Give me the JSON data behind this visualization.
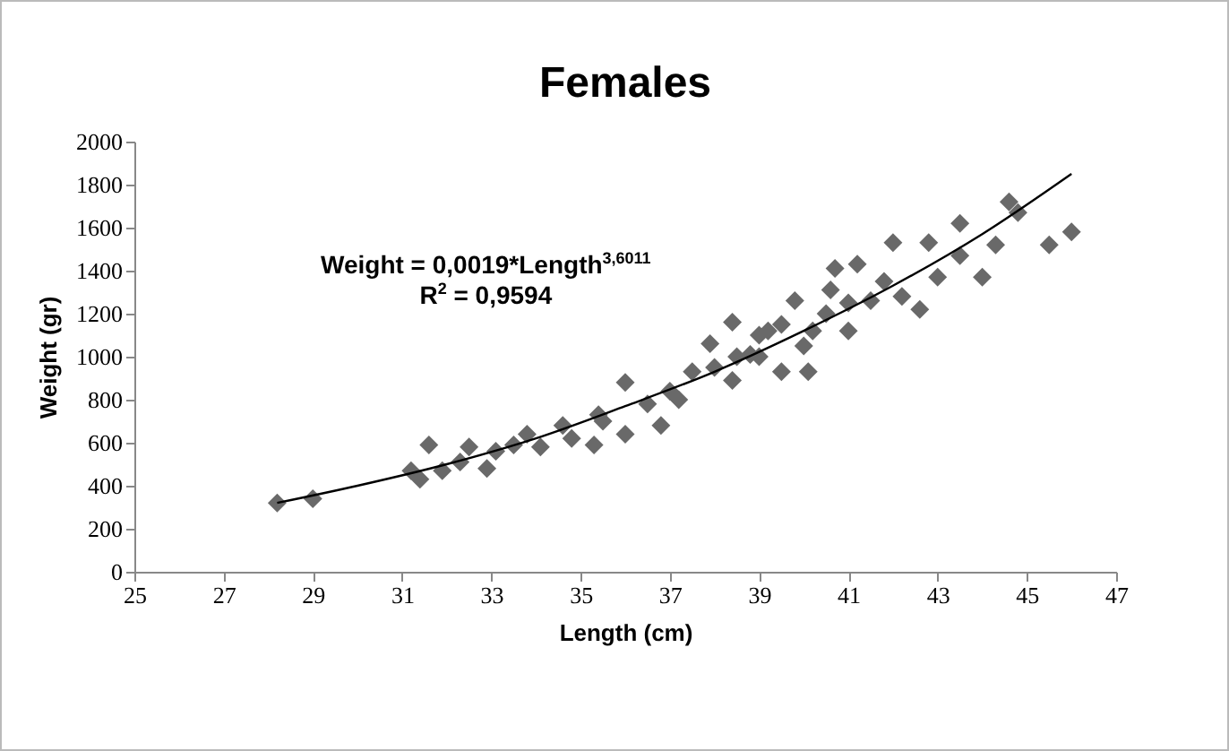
{
  "chart_data": {
    "type": "scatter",
    "title": "Females",
    "xlabel": "Length (cm)",
    "ylabel": "Weight (gr)",
    "annotations": [
      "Weight = 0,0019*Length$^{3,6011}$",
      "R$^{2}$ = 0,9594"
    ],
    "xlim": [
      25,
      47
    ],
    "xticks": [
      25,
      27,
      29,
      31,
      33,
      35,
      37,
      39,
      41,
      43,
      45,
      47
    ],
    "ylim": [
      0,
      2000
    ],
    "yticks": [
      0,
      200,
      400,
      600,
      800,
      1000,
      1200,
      1400,
      1600,
      1800,
      2000
    ],
    "grid": false,
    "marker": "diamond",
    "series": [
      {
        "color": "#696969",
        "x": [
          28.2,
          29.0,
          31.2,
          31.4,
          31.6,
          31.9,
          32.3,
          32.5,
          32.9,
          33.1,
          33.5,
          33.8,
          34.1,
          34.6,
          34.8,
          35.3,
          35.4,
          35.5,
          36.0,
          36.0,
          36.5,
          36.8,
          37.0,
          37.2,
          37.5,
          37.9,
          38.0,
          38.4,
          38.4,
          38.5,
          38.8,
          39.0,
          39.0,
          39.2,
          39.5,
          39.5,
          39.8,
          40.0,
          40.1,
          40.2,
          40.5,
          40.6,
          40.7,
          41.0,
          41.0,
          41.2,
          41.5,
          41.8,
          42.0,
          42.2,
          42.6,
          42.8,
          43.0,
          43.5,
          43.5,
          44.0,
          44.3,
          44.6,
          44.8,
          45.5,
          46.0
        ],
        "values": [
          320,
          340,
          470,
          430,
          590,
          470,
          510,
          580,
          480,
          560,
          590,
          640,
          580,
          680,
          620,
          590,
          730,
          700,
          880,
          640,
          780,
          680,
          840,
          800,
          930,
          1060,
          950,
          1160,
          890,
          1000,
          1010,
          1000,
          1100,
          1120,
          930,
          1150,
          1260,
          1050,
          930,
          1120,
          1200,
          1310,
          1410,
          1120,
          1250,
          1430,
          1260,
          1350,
          1530,
          1280,
          1220,
          1530,
          1370,
          1620,
          1470,
          1370,
          1520,
          1720,
          1670,
          1520,
          1580
        ]
      },
      {
        "type": "line",
        "color": "#000000",
        "marker": "none",
        "line_style": "solid",
        "x": [
          28.2,
          30,
          32,
          34,
          36,
          38,
          40,
          42,
          44,
          46
        ],
        "values": [
          320,
          400,
          500,
          620,
          770,
          930,
          1120,
          1330,
          1570,
          1850
        ]
      }
    ]
  }
}
